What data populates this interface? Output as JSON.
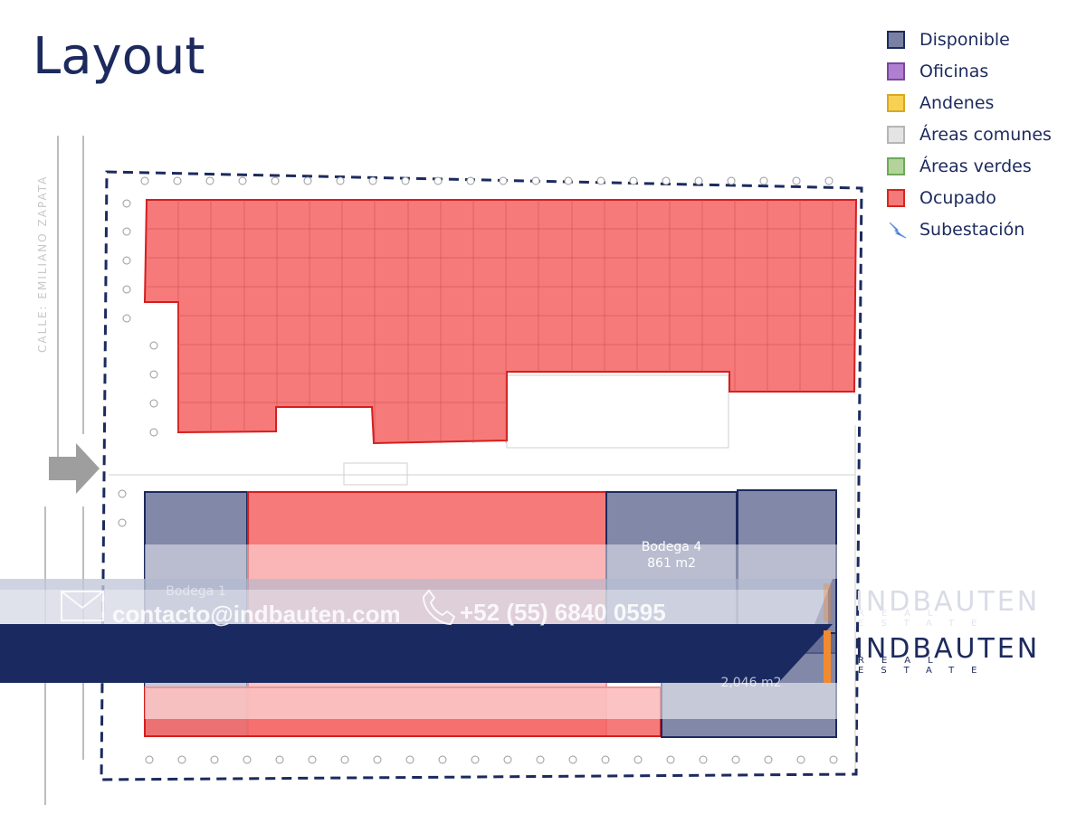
{
  "page": {
    "title": "Layout"
  },
  "legend": {
    "items": [
      {
        "label": "Disponible",
        "color": "#7b80a3",
        "border": "#1c2a5e"
      },
      {
        "label": "Oficinas",
        "color": "#b07fd1",
        "border": "#7a4a9a"
      },
      {
        "label": "Andenes",
        "color": "#f7d154",
        "border": "#d9a91e"
      },
      {
        "label": "Áreas comunes",
        "color": "#e4e4e4",
        "border": "#b5b5b5"
      },
      {
        "label": "Áreas verdes",
        "color": "#b3d39a",
        "border": "#6da85a"
      },
      {
        "label": "Ocupado",
        "color": "#f47a7a",
        "border": "#d9241e"
      }
    ],
    "substation_label": "Subestación",
    "substation_icon": "lightning-bolt-icon"
  },
  "plan": {
    "street_label": "CALLE: EMILIANO ZAPATA",
    "units": [
      {
        "name": "Bodega 1",
        "area": ""
      },
      {
        "name": "Bodega 4",
        "area": "861 m2"
      },
      {
        "name": "",
        "area": "2,046 m2"
      }
    ]
  },
  "contact": {
    "email": "contacto@indbauten.com",
    "phone": "+52 (55) 6840 0595",
    "email_icon": "envelope-icon",
    "phone_icon": "phone-icon"
  },
  "brand": {
    "name": "INDBAUTEN",
    "tagline": "REAL ESTATE",
    "accent": "#f28a30",
    "navy": "#1c2a5e"
  }
}
